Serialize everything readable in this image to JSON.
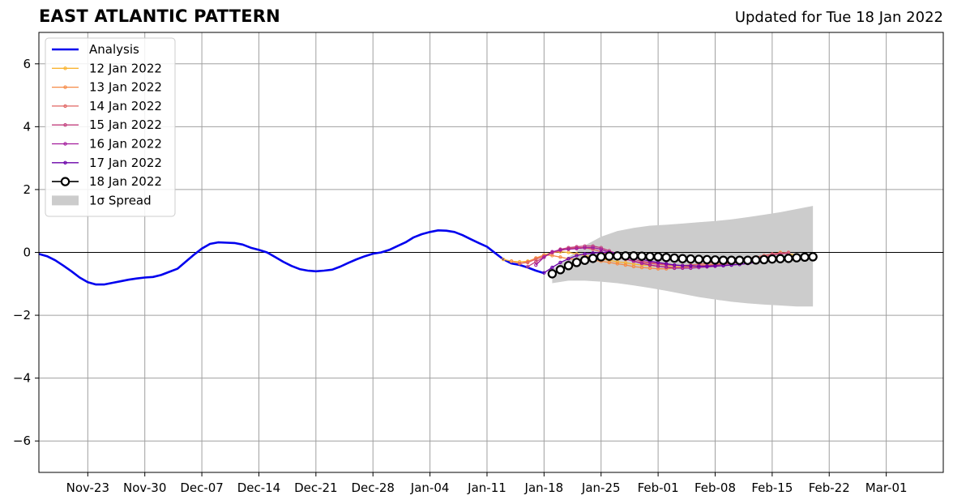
{
  "chart_data": {
    "type": "line",
    "title": "EAST ATLANTIC PATTERN",
    "subtitle": "Updated for Tue 18 Jan 2022",
    "xlabel": "",
    "ylabel": "",
    "xlim": [
      "2021-11-17",
      "2022-03-08"
    ],
    "ylim": [
      -7,
      7
    ],
    "yticks": [
      -6,
      -4,
      -2,
      0,
      2,
      4,
      6
    ],
    "ytick_labels": [
      "−6",
      "−4",
      "−2",
      "0",
      "2",
      "4",
      "6"
    ],
    "xticks": [
      "2021-11-23",
      "2021-11-30",
      "2021-12-07",
      "2021-12-14",
      "2021-12-21",
      "2021-12-28",
      "2022-01-04",
      "2022-01-11",
      "2022-01-18",
      "2022-01-25",
      "2022-02-01",
      "2022-02-08",
      "2022-02-15",
      "2022-02-22",
      "2022-03-01"
    ],
    "xtick_labels": [
      "Nov-23",
      "Nov-30",
      "Dec-07",
      "Dec-14",
      "Dec-21",
      "Dec-28",
      "Jan-04",
      "Jan-11",
      "Jan-18",
      "Jan-25",
      "Feb-01",
      "Feb-08",
      "Feb-15",
      "Feb-22",
      "Mar-01"
    ],
    "grid": true,
    "legend_position": "upper-left",
    "analysis": {
      "name": "Analysis",
      "color": "#0000ee",
      "x": [
        "2021-11-17",
        "2021-11-18",
        "2021-11-19",
        "2021-11-20",
        "2021-11-21",
        "2021-11-22",
        "2021-11-23",
        "2021-11-24",
        "2021-11-25",
        "2021-11-26",
        "2021-11-27",
        "2021-11-28",
        "2021-11-29",
        "2021-11-30",
        "2021-12-01",
        "2021-12-02",
        "2021-12-03",
        "2021-12-04",
        "2021-12-05",
        "2021-12-06",
        "2021-12-07",
        "2021-12-08",
        "2021-12-09",
        "2021-12-10",
        "2021-12-11",
        "2021-12-12",
        "2021-12-13",
        "2021-12-14",
        "2021-12-15",
        "2021-12-16",
        "2021-12-17",
        "2021-12-18",
        "2021-12-19",
        "2021-12-20",
        "2021-12-21",
        "2021-12-22",
        "2021-12-23",
        "2021-12-24",
        "2021-12-25",
        "2021-12-26",
        "2021-12-27",
        "2021-12-28",
        "2021-12-29",
        "2021-12-30",
        "2021-12-31",
        "2022-01-01",
        "2022-01-02",
        "2022-01-03",
        "2022-01-04",
        "2022-01-05",
        "2022-01-06",
        "2022-01-07",
        "2022-01-08",
        "2022-01-09",
        "2022-01-10",
        "2022-01-11",
        "2022-01-12",
        "2022-01-13",
        "2022-01-14",
        "2022-01-15",
        "2022-01-16",
        "2022-01-17",
        "2022-01-18"
      ],
      "y": [
        -0.05,
        -0.12,
        -0.25,
        -0.42,
        -0.6,
        -0.8,
        -0.95,
        -1.02,
        -1.02,
        -0.97,
        -0.92,
        -0.87,
        -0.83,
        -0.8,
        -0.78,
        -0.72,
        -0.62,
        -0.52,
        -0.3,
        -0.08,
        0.12,
        0.27,
        0.32,
        0.31,
        0.3,
        0.25,
        0.15,
        0.08,
        0.0,
        -0.15,
        -0.3,
        -0.43,
        -0.53,
        -0.58,
        -0.6,
        -0.58,
        -0.55,
        -0.45,
        -0.33,
        -0.22,
        -0.12,
        -0.04,
        0.0,
        0.08,
        0.2,
        0.32,
        0.48,
        0.58,
        0.65,
        0.7,
        0.69,
        0.65,
        0.55,
        0.42,
        0.3,
        0.18,
        -0.02,
        -0.22,
        -0.35,
        -0.4,
        -0.48,
        -0.58,
        -0.66
      ]
    },
    "forecasts": [
      {
        "name": "12 Jan 2022",
        "color": "#f9b431",
        "start": "2022-01-13",
        "y": [
          -0.22,
          -0.28,
          -0.3,
          -0.28,
          -0.2,
          -0.08,
          0.0,
          0.02,
          0.0,
          -0.05,
          -0.1,
          -0.15,
          -0.2,
          -0.25,
          -0.3,
          -0.33,
          -0.37,
          -0.4,
          -0.42,
          -0.44,
          -0.45,
          -0.47,
          -0.47,
          -0.46,
          -0.44,
          -0.42,
          -0.4,
          -0.37,
          -0.34,
          -0.3,
          -0.25,
          -0.2,
          -0.15,
          -0.08,
          0.0,
          -0.05,
          -0.08
        ]
      },
      {
        "name": "13 Jan 2022",
        "color": "#f68a46",
        "start": "2022-01-14",
        "y": [
          -0.28,
          -0.35,
          -0.3,
          -0.18,
          -0.08,
          -0.1,
          -0.15,
          -0.2,
          -0.22,
          -0.22,
          -0.25,
          -0.28,
          -0.32,
          -0.36,
          -0.4,
          -0.45,
          -0.48,
          -0.5,
          -0.52,
          -0.52,
          -0.5,
          -0.48,
          -0.45,
          -0.42,
          -0.4,
          -0.38,
          -0.35,
          -0.32,
          -0.3,
          -0.27,
          -0.25,
          -0.22,
          -0.2,
          -0.18,
          -0.15
        ]
      },
      {
        "name": "14 Jan 2022",
        "color": "#e16462",
        "start": "2022-01-15",
        "y": [
          -0.35,
          -0.32,
          -0.22,
          -0.12,
          -0.02,
          0.06,
          0.12,
          0.15,
          0.15,
          0.1,
          0.02,
          -0.08,
          -0.15,
          -0.22,
          -0.28,
          -0.32,
          -0.35,
          -0.38,
          -0.4,
          -0.42,
          -0.42,
          -0.4,
          -0.38,
          -0.35,
          -0.32,
          -0.3,
          -0.27,
          -0.25,
          -0.2,
          -0.15,
          -0.1,
          -0.05,
          -0.02,
          0.0
        ]
      },
      {
        "name": "15 Jan 2022",
        "color": "#c3407e",
        "start": "2022-01-16",
        "y": [
          -0.45,
          -0.3,
          -0.15,
          0.0,
          0.1,
          0.15,
          0.18,
          0.2,
          0.2,
          0.15,
          0.05,
          -0.05,
          -0.15,
          -0.22,
          -0.28,
          -0.32,
          -0.35,
          -0.38,
          -0.4,
          -0.42,
          -0.43,
          -0.43,
          -0.42,
          -0.4,
          -0.38,
          -0.35,
          -0.32,
          -0.28,
          -0.22,
          -0.15,
          -0.08,
          -0.05,
          -0.03
        ]
      },
      {
        "name": "16 Jan 2022",
        "color": "#a21a9c",
        "start": "2022-01-17",
        "y": [
          -0.4,
          -0.15,
          0.02,
          0.08,
          0.1,
          0.12,
          0.15,
          0.15,
          0.1,
          0.0,
          -0.1,
          -0.2,
          -0.28,
          -0.35,
          -0.4,
          -0.44,
          -0.47,
          -0.5,
          -0.5,
          -0.5,
          -0.48,
          -0.46,
          -0.44,
          -0.42,
          -0.4,
          -0.38,
          -0.35,
          -0.32,
          -0.28,
          -0.24,
          -0.2,
          -0.15
        ]
      },
      {
        "name": "17 Jan 2022",
        "color": "#6a00a8",
        "start": "2022-01-18",
        "y": [
          -0.65,
          -0.48,
          -0.32,
          -0.2,
          -0.1,
          -0.05,
          -0.02,
          0.0,
          0.0,
          -0.02,
          -0.08,
          -0.15,
          -0.22,
          -0.28,
          -0.32,
          -0.36,
          -0.4,
          -0.42,
          -0.43,
          -0.44,
          -0.44,
          -0.43,
          -0.42,
          -0.4,
          -0.38,
          -0.35,
          -0.32,
          -0.28,
          -0.25,
          -0.22,
          -0.2
        ]
      },
      {
        "name": "18 Jan 2022",
        "color": "#000000",
        "start": "2022-01-19",
        "y": [
          -0.68,
          -0.55,
          -0.42,
          -0.32,
          -0.25,
          -0.19,
          -0.14,
          -0.12,
          -0.11,
          -0.11,
          -0.11,
          -0.12,
          -0.13,
          -0.14,
          -0.16,
          -0.18,
          -0.2,
          -0.21,
          -0.22,
          -0.23,
          -0.24,
          -0.25,
          -0.25,
          -0.25,
          -0.25,
          -0.24,
          -0.23,
          -0.21,
          -0.2,
          -0.19,
          -0.17,
          -0.15,
          -0.14
        ]
      }
    ],
    "spread": {
      "name": "1σ Spread",
      "color": "#cccccc",
      "x": [
        "2022-01-19",
        "2022-01-21",
        "2022-01-23",
        "2022-01-25",
        "2022-01-27",
        "2022-01-29",
        "2022-01-31",
        "2022-02-02",
        "2022-02-04",
        "2022-02-06",
        "2022-02-08",
        "2022-02-10",
        "2022-02-12",
        "2022-02-14",
        "2022-02-16",
        "2022-02-18",
        "2022-02-20"
      ],
      "upper": [
        -0.55,
        -0.15,
        0.22,
        0.5,
        0.68,
        0.78,
        0.85,
        0.88,
        0.92,
        0.96,
        1.0,
        1.05,
        1.12,
        1.2,
        1.28,
        1.38,
        1.48
      ],
      "lower": [
        -0.98,
        -0.9,
        -0.9,
        -0.93,
        -0.98,
        -1.05,
        -1.13,
        -1.22,
        -1.32,
        -1.42,
        -1.5,
        -1.57,
        -1.62,
        -1.66,
        -1.69,
        -1.72,
        -1.72
      ]
    },
    "legend": [
      "Analysis",
      "12 Jan 2022",
      "13 Jan 2022",
      "14 Jan 2022",
      "15 Jan 2022",
      "16 Jan 2022",
      "17 Jan 2022",
      "18 Jan 2022",
      "1σ Spread"
    ]
  }
}
